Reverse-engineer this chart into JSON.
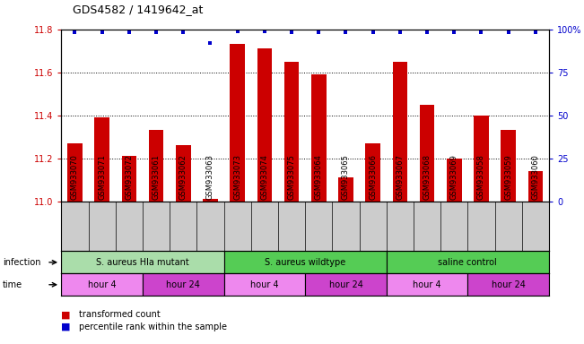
{
  "title": "GDS4582 / 1419642_at",
  "samples": [
    "GSM933070",
    "GSM933071",
    "GSM933072",
    "GSM933061",
    "GSM933062",
    "GSM933063",
    "GSM933073",
    "GSM933074",
    "GSM933075",
    "GSM933064",
    "GSM933065",
    "GSM933066",
    "GSM933067",
    "GSM933068",
    "GSM933069",
    "GSM933058",
    "GSM933059",
    "GSM933060"
  ],
  "bar_values": [
    11.27,
    11.39,
    11.21,
    11.33,
    11.26,
    11.01,
    11.73,
    11.71,
    11.65,
    11.59,
    11.11,
    11.27,
    11.65,
    11.45,
    11.2,
    11.4,
    11.33,
    11.14
  ],
  "percentile_values": [
    98,
    98,
    98,
    98,
    98,
    92,
    99,
    99,
    98,
    98,
    98,
    98,
    98,
    98,
    98,
    98,
    98,
    98
  ],
  "ylim_left": [
    11.0,
    11.8
  ],
  "ylim_right": [
    0,
    100
  ],
  "yticks_left": [
    11.0,
    11.2,
    11.4,
    11.6,
    11.8
  ],
  "yticks_right": [
    0,
    25,
    50,
    75,
    100
  ],
  "bar_color": "#cc0000",
  "dot_color": "#0000cc",
  "sample_bg_color": "#cccccc",
  "infection_data": [
    {
      "label": "S. aureus Hla mutant",
      "start": 0,
      "end": 6,
      "color": "#aaddaa"
    },
    {
      "label": "S. aureus wildtype",
      "start": 6,
      "end": 12,
      "color": "#55cc55"
    },
    {
      "label": "saline control",
      "start": 12,
      "end": 18,
      "color": "#55cc55"
    }
  ],
  "time_data": [
    {
      "label": "hour 4",
      "start": 0,
      "end": 3,
      "color": "#ee88ee"
    },
    {
      "label": "hour 24",
      "start": 3,
      "end": 6,
      "color": "#cc44cc"
    },
    {
      "label": "hour 4",
      "start": 6,
      "end": 9,
      "color": "#ee88ee"
    },
    {
      "label": "hour 24",
      "start": 9,
      "end": 12,
      "color": "#cc44cc"
    },
    {
      "label": "hour 4",
      "start": 12,
      "end": 15,
      "color": "#ee88ee"
    },
    {
      "label": "hour 24",
      "start": 15,
      "end": 18,
      "color": "#cc44cc"
    }
  ],
  "infection_label": "infection",
  "time_label": "time",
  "legend_items": [
    {
      "label": "transformed count",
      "color": "#cc0000"
    },
    {
      "label": "percentile rank within the sample",
      "color": "#0000cc"
    }
  ]
}
